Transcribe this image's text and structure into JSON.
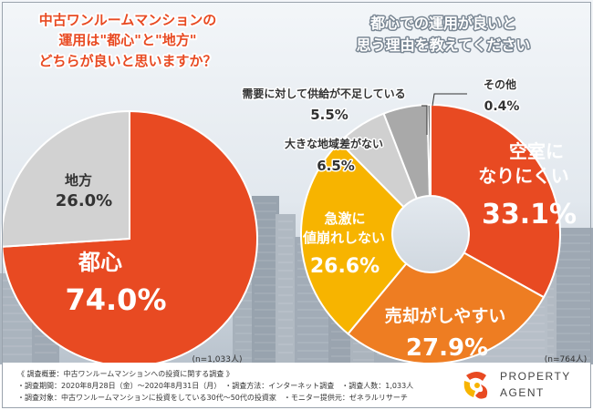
{
  "charts": [
    {
      "type": "pie",
      "title_lines": [
        "中古ワンルームマンションの",
        "運用は\"都心\"と\"地方\"",
        "どちらが良いと思いますか？"
      ],
      "slices": [
        {
          "label": "都心",
          "value": 74.0,
          "display": "74.0%",
          "color": "#e84a22"
        },
        {
          "label": "地方",
          "value": 26.0,
          "display": "26.0%",
          "color": "#d2d2d2"
        }
      ],
      "n_label": "(n=1,033人)"
    },
    {
      "type": "donut",
      "title_lines": [
        "都心での運用が良いと",
        "思う理由を教えてください"
      ],
      "slices": [
        {
          "label_lines": [
            "空室に",
            "なりにくい"
          ],
          "value": 33.1,
          "display": "33.1%",
          "color": "#e84a22"
        },
        {
          "label_lines": [
            "売却がしやすい"
          ],
          "value": 27.9,
          "display": "27.9%",
          "color": "#ee7d22"
        },
        {
          "label_lines": [
            "急激に",
            "値崩れしない"
          ],
          "value": 26.6,
          "display": "26.6%",
          "color": "#f7b400"
        },
        {
          "label_lines": [
            "大きな地域差がない"
          ],
          "value": 6.5,
          "display": "6.5%",
          "color": "#d0d0d0"
        },
        {
          "label_lines": [
            "需要に対して供給が不足している"
          ],
          "value": 5.5,
          "display": "5.5%",
          "color": "#a9a9a9"
        },
        {
          "label_lines": [
            "その他"
          ],
          "value": 0.4,
          "display": "0.4%",
          "color": "#7f7f7f"
        }
      ],
      "n_label": "(n=764人)"
    }
  ],
  "footer": {
    "lines": [
      "《 調査概要：中古ワンルームマンションへの投資に関する調査 》",
      "・調査期間：2020年8月28日（金）～2020年8月31日（月）　・調査方法：インターネット調査　・調査人数：1,033人",
      "・調査対象：中古ワンルームマンションに投資をしている30代～50代の投資家　・モニター提供元：ゼネラルリサーチ"
    ]
  },
  "logo": {
    "line1": "PROPERTY",
    "line2": "AGENT"
  },
  "colors": {
    "orange": "#e84a22",
    "dark_text": "#333333",
    "label_text": "#ffffff"
  }
}
